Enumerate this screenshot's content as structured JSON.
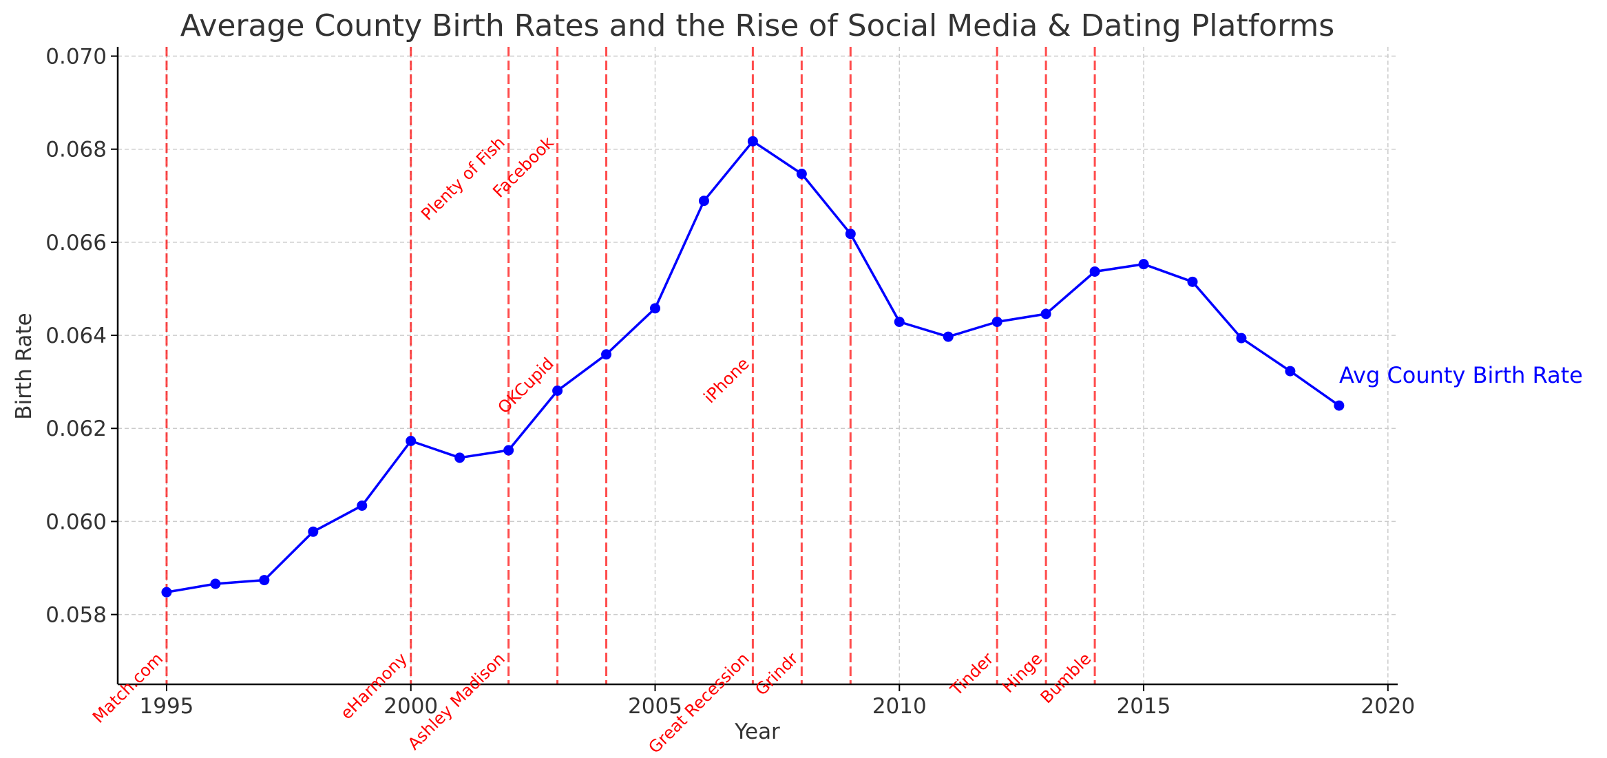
{
  "chart_data": {
    "type": "line",
    "title": "Average County Birth Rates and the Rise of Social Media & Dating Platforms",
    "xlabel": "Year",
    "ylabel": "Birth Rate",
    "xlim": [
      1994,
      2020.2
    ],
    "ylim": [
      0.0565,
      0.0702
    ],
    "x_ticks": [
      1995,
      2000,
      2005,
      2010,
      2015,
      2020
    ],
    "y_ticks": [
      0.058,
      0.06,
      0.062,
      0.064,
      0.066,
      0.068,
      0.07
    ],
    "y_tick_labels": [
      "0.058",
      "0.060",
      "0.062",
      "0.064",
      "0.066",
      "0.068",
      "0.070"
    ],
    "grid": true,
    "series": [
      {
        "name": "Avg County Birth Rate",
        "color": "#0000ff",
        "x": [
          1995,
          1996,
          1997,
          1998,
          1999,
          2000,
          2001,
          2002,
          2003,
          2004,
          2005,
          2006,
          2007,
          2008,
          2009,
          2010,
          2011,
          2012,
          2013,
          2014,
          2015,
          2016,
          2017,
          2018,
          2019
        ],
        "values": [
          0.05848,
          0.05866,
          0.05874,
          0.05978,
          0.06034,
          0.06173,
          0.06137,
          0.06153,
          0.06281,
          0.06359,
          0.06458,
          0.06689,
          0.06817,
          0.06747,
          0.06618,
          0.06429,
          0.06397,
          0.06429,
          0.06446,
          0.06537,
          0.06553,
          0.06515,
          0.06394,
          0.06323,
          0.06249
        ]
      }
    ],
    "events": [
      {
        "year": 1995,
        "label": "Match.com",
        "position": "bottom"
      },
      {
        "year": 2000,
        "label": "eHarmony",
        "position": "bottom"
      },
      {
        "year": 2002,
        "label": "Ashley Madison",
        "position": "bottom"
      },
      {
        "year": 2002,
        "label": "Plenty of Fish",
        "position": "top"
      },
      {
        "year": 2003,
        "label": "Facebook",
        "position": "top"
      },
      {
        "year": 2003,
        "label": "OKCupid",
        "position": "middle"
      },
      {
        "year": 2004,
        "label": "",
        "position": "none"
      },
      {
        "year": 2007,
        "label": "iPhone",
        "position": "middle"
      },
      {
        "year": 2007,
        "label": "Great Recession",
        "position": "bottom"
      },
      {
        "year": 2008,
        "label": "Grindr",
        "position": "bottom"
      },
      {
        "year": 2009,
        "label": "",
        "position": "none"
      },
      {
        "year": 2012,
        "label": "Tinder",
        "position": "bottom"
      },
      {
        "year": 2013,
        "label": "Hinge",
        "position": "bottom"
      },
      {
        "year": 2014,
        "label": "Bumble",
        "position": "bottom"
      }
    ],
    "event_color": "#ff0000"
  }
}
